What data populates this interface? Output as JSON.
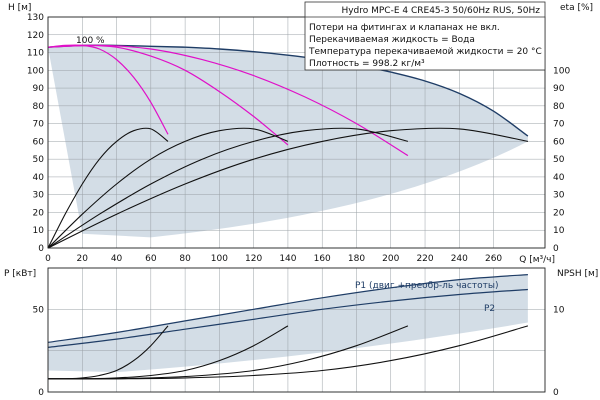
{
  "title": "Hydro MPC-E 4 CRE45-3 50/60Hz RUS, 50Hz",
  "info_lines": [
    "Потери на фитингах и клапанах не вкл.",
    "Перекачиваемая жидкость = Вода",
    "Температура перекачиваемой жидкости = 20 °C",
    "Плотность = 998.2 кг/м³"
  ],
  "colors": {
    "envelope_fill": "#c8d4e0",
    "envelope_line": "#1f3d66",
    "head_curve": "#e010c8",
    "eta_curve": "#111111"
  },
  "chart_data": [
    {
      "type": "line",
      "panel": "head-efficiency",
      "xlabel": "Q [м³/ч]",
      "ylabel_left": "H [м]",
      "ylabel_right": "eta [%]",
      "xlim": [
        0,
        290
      ],
      "ylim_left": [
        0,
        130
      ],
      "ylim_right": [
        0,
        130
      ],
      "xticks": [
        0,
        20,
        40,
        60,
        80,
        100,
        120,
        140,
        160,
        180,
        200,
        220,
        240,
        260
      ],
      "yticks_left": [
        0,
        10,
        20,
        30,
        40,
        50,
        60,
        70,
        80,
        90,
        100,
        110,
        120,
        130
      ],
      "yticks_right": [
        0,
        10,
        20,
        30,
        40,
        50,
        60,
        70,
        80,
        90,
        100
      ],
      "speed_label": "100 %",
      "grid": true,
      "series": [
        {
          "kind": "head-max",
          "x": [
            0,
            20,
            40,
            60,
            80,
            100,
            120,
            140,
            160,
            180,
            200,
            220,
            240,
            260,
            280
          ],
          "y": [
            113,
            114,
            114,
            113.5,
            113,
            112,
            110.5,
            108.5,
            106,
            103,
            99,
            94,
            87,
            77,
            63
          ]
        },
        {
          "kind": "head-1pump",
          "x": [
            0,
            10,
            20,
            30,
            40,
            50,
            60,
            70
          ],
          "y": [
            113,
            114,
            114,
            112,
            106,
            96,
            82,
            64
          ]
        },
        {
          "kind": "head-2pumps",
          "x": [
            0,
            20,
            40,
            60,
            80,
            100,
            120,
            140
          ],
          "y": [
            113,
            114,
            113,
            108,
            100,
            88,
            74,
            58
          ]
        },
        {
          "kind": "head-3pumps",
          "x": [
            0,
            30,
            60,
            90,
            120,
            150,
            180,
            210
          ],
          "y": [
            113,
            114,
            112,
            106,
            97,
            85,
            70,
            52
          ]
        },
        {
          "kind": "eta-1pump",
          "x": [
            0,
            10,
            20,
            30,
            40,
            50,
            60,
            70
          ],
          "y": [
            0,
            19,
            36,
            50,
            60,
            66,
            67,
            60
          ]
        },
        {
          "kind": "eta-2pumps",
          "x": [
            0,
            20,
            40,
            60,
            80,
            100,
            120,
            140
          ],
          "y": [
            0,
            19,
            36,
            50,
            60,
            66,
            67,
            60
          ]
        },
        {
          "kind": "eta-3pumps",
          "x": [
            0,
            30,
            60,
            90,
            120,
            150,
            180,
            210
          ],
          "y": [
            0,
            19,
            36,
            50,
            60,
            66,
            67,
            60
          ]
        },
        {
          "kind": "eta-4pumps",
          "x": [
            0,
            40,
            80,
            120,
            160,
            200,
            240,
            280
          ],
          "y": [
            0,
            19,
            36,
            50,
            60,
            66,
            67,
            60
          ]
        }
      ]
    },
    {
      "type": "line",
      "panel": "power-npsh",
      "ylabel_left": "P [кВт]",
      "ylabel_right": "NPSH [м]",
      "xlim": [
        0,
        290
      ],
      "ylim_left": [
        0,
        75
      ],
      "ylim_right": [
        0,
        15
      ],
      "yticks_left": [
        0,
        50
      ],
      "yticks_right": [
        0,
        10
      ],
      "grid": true,
      "series": [
        {
          "name": "P1 (двиг.+преобр-ль частоты)",
          "kind": "p1-max",
          "x": [
            0,
            40,
            80,
            120,
            160,
            200,
            240,
            280
          ],
          "y": [
            30,
            36,
            43,
            50,
            57,
            63,
            68,
            71
          ]
        },
        {
          "name": "P2",
          "kind": "p2-max",
          "x": [
            0,
            40,
            80,
            120,
            160,
            200,
            240,
            280
          ],
          "y": [
            27,
            32,
            38,
            44,
            50,
            55,
            59,
            62
          ]
        },
        {
          "kind": "npsh-1pump",
          "x": [
            0,
            10,
            20,
            30,
            40,
            50,
            60,
            70
          ],
          "y": [
            1.6,
            1.6,
            1.7,
            2.0,
            2.6,
            3.8,
            5.6,
            8.0
          ]
        },
        {
          "kind": "npsh-2pumps",
          "x": [
            0,
            20,
            40,
            60,
            80,
            100,
            120,
            140
          ],
          "y": [
            1.6,
            1.6,
            1.7,
            2.0,
            2.6,
            3.8,
            5.6,
            8.0
          ]
        },
        {
          "kind": "npsh-3pumps",
          "x": [
            0,
            30,
            60,
            90,
            120,
            150,
            180,
            210
          ],
          "y": [
            1.6,
            1.6,
            1.7,
            2.0,
            2.6,
            3.8,
            5.6,
            8.0
          ]
        },
        {
          "kind": "npsh-4pumps",
          "x": [
            0,
            40,
            80,
            120,
            160,
            200,
            240,
            280
          ],
          "y": [
            1.6,
            1.6,
            1.7,
            2.0,
            2.6,
            3.8,
            5.6,
            8.0
          ]
        }
      ]
    }
  ]
}
